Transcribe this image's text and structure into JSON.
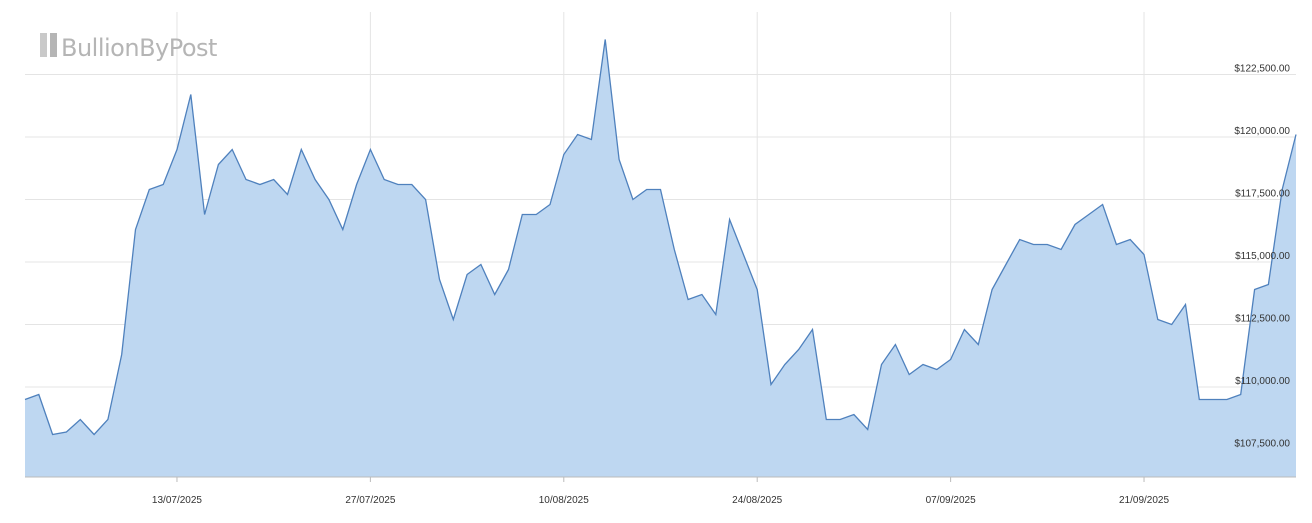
{
  "logo": "BullionByPost",
  "chart_data": {
    "type": "area",
    "x": [
      "02/07/2025",
      "03/07/2025",
      "04/07/2025",
      "05/07/2025",
      "06/07/2025",
      "07/07/2025",
      "08/07/2025",
      "09/07/2025",
      "10/07/2025",
      "11/07/2025",
      "12/07/2025",
      "13/07/2025",
      "14/07/2025",
      "15/07/2025",
      "16/07/2025",
      "17/07/2025",
      "18/07/2025",
      "19/07/2025",
      "20/07/2025",
      "21/07/2025",
      "22/07/2025",
      "23/07/2025",
      "24/07/2025",
      "25/07/2025",
      "26/07/2025",
      "27/07/2025",
      "28/07/2025",
      "29/07/2025",
      "30/07/2025",
      "31/07/2025",
      "01/08/2025",
      "02/08/2025",
      "03/08/2025",
      "04/08/2025",
      "05/08/2025",
      "06/08/2025",
      "07/08/2025",
      "08/08/2025",
      "09/08/2025",
      "10/08/2025",
      "11/08/2025",
      "12/08/2025",
      "13/08/2025",
      "14/08/2025",
      "15/08/2025",
      "16/08/2025",
      "17/08/2025",
      "18/08/2025",
      "19/08/2025",
      "20/08/2025",
      "21/08/2025",
      "22/08/2025",
      "23/08/2025",
      "24/08/2025",
      "25/08/2025",
      "26/08/2025",
      "27/08/2025",
      "28/08/2025",
      "29/08/2025",
      "30/08/2025",
      "31/08/2025",
      "01/09/2025",
      "02/09/2025",
      "03/09/2025",
      "04/09/2025",
      "05/09/2025",
      "06/09/2025",
      "07/09/2025",
      "08/09/2025",
      "09/09/2025",
      "10/09/2025",
      "11/09/2025",
      "12/09/2025",
      "13/09/2025",
      "14/09/2025",
      "15/09/2025",
      "16/09/2025",
      "17/09/2025",
      "18/09/2025",
      "19/09/2025",
      "20/09/2025",
      "21/09/2025",
      "22/09/2025",
      "23/09/2025",
      "24/09/2025",
      "25/09/2025",
      "26/09/2025",
      "27/09/2025",
      "28/09/2025",
      "29/09/2025",
      "30/09/2025",
      "01/10/2025",
      "02/10/2025"
    ],
    "series": [
      {
        "color": "#4f81bd",
        "fill": "#bed7f1",
        "values": [
          109500,
          109700,
          108100,
          108200,
          108700,
          108100,
          108700,
          111300,
          116300,
          117900,
          118100,
          119500,
          121700,
          116900,
          118900,
          119500,
          118300,
          118100,
          118300,
          117700,
          119500,
          118300,
          117500,
          116300,
          118100,
          119500,
          118300,
          118100,
          118100,
          117500,
          114300,
          112700,
          114500,
          114900,
          113700,
          114700,
          116900,
          116900,
          117300,
          119300,
          120100,
          119900,
          123900,
          119100,
          117500,
          117900,
          117900,
          115500,
          113500,
          113700,
          112900,
          116700,
          115300,
          113900,
          110100,
          110900,
          111500,
          112300,
          108700,
          108700,
          108900,
          108300,
          110900,
          111700,
          110500,
          110900,
          110700,
          111100,
          112300,
          111700,
          113900,
          114900,
          115900,
          115700,
          115700,
          115500,
          116500,
          116900,
          117300,
          115700,
          115900,
          115300,
          112700,
          112500,
          113300,
          109500,
          109500,
          109500,
          109700,
          113900,
          114100,
          117900,
          120100
        ]
      }
    ],
    "xlim": [
      "02/07/2025",
      "02/10/2025"
    ],
    "xticks": [
      "13/07/2025",
      "27/07/2025",
      "10/08/2025",
      "24/08/2025",
      "07/09/2025",
      "21/09/2025"
    ],
    "ylim": [
      106400,
      125000
    ],
    "yticks": [
      {
        "value": 107500,
        "label": "$107,500.00"
      },
      {
        "value": 110000,
        "label": "$110,000.00"
      },
      {
        "value": 112500,
        "label": "$112,500.00"
      },
      {
        "value": 115000,
        "label": "$115,000.00"
      },
      {
        "value": 117500,
        "label": "$117,500.00"
      },
      {
        "value": 120000,
        "label": "$120,000.00"
      },
      {
        "value": 122500,
        "label": "$122,500.00"
      }
    ],
    "grid": true
  }
}
